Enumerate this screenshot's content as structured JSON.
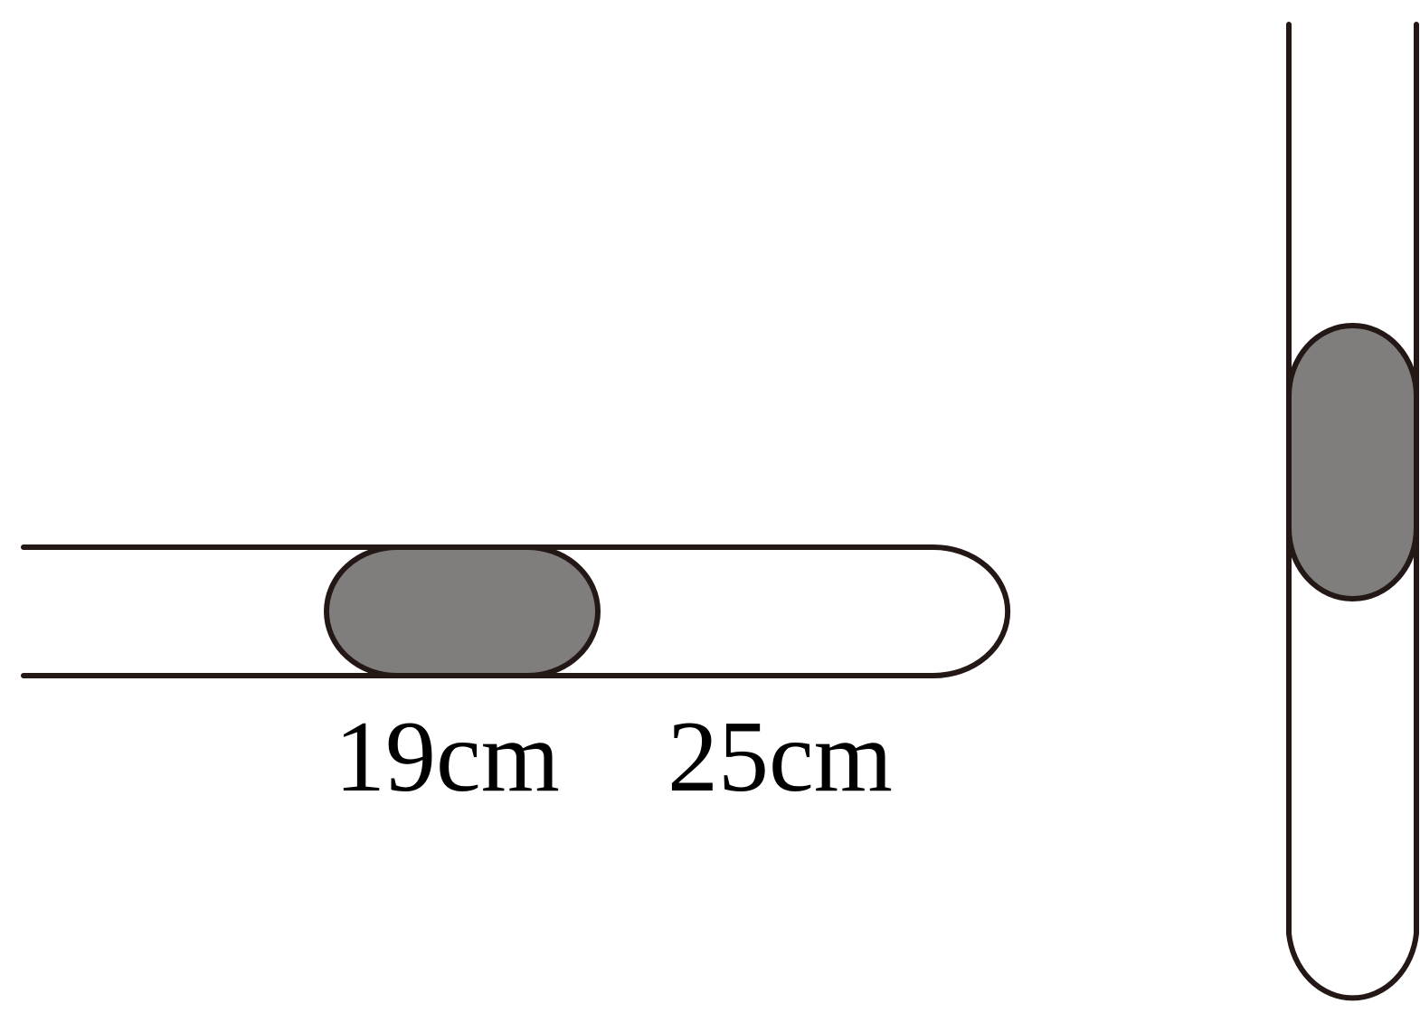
{
  "diagram": {
    "horizontal_tube": {
      "mercury_length_label": "19cm",
      "air_column_length_label": "25cm"
    },
    "colors": {
      "outline": "#231815",
      "mercury": "#7f7e7d",
      "background": "#ffffff"
    }
  }
}
